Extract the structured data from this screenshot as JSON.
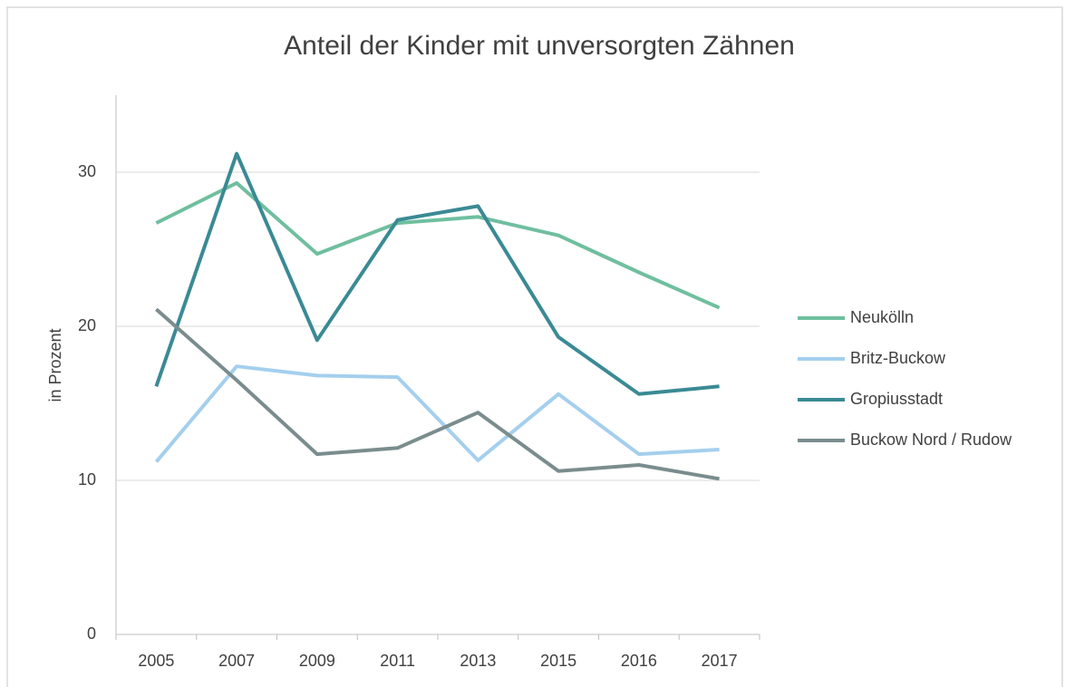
{
  "chart_data": {
    "type": "line",
    "title": "Anteil der Kinder mit unversorgten Zähnen",
    "y_label": "in Prozent",
    "categories": [
      "2005",
      "2007",
      "2009",
      "2011",
      "2013",
      "2015",
      "2016",
      "2017"
    ],
    "series": [
      {
        "name": "Neukölln",
        "color": "#6fbf9f",
        "values": [
          26.7,
          29.3,
          24.7,
          26.7,
          27.1,
          25.9,
          23.5,
          21.2
        ]
      },
      {
        "name": "Britz-Buckow",
        "color": "#a4cfee",
        "values": [
          11.2,
          17.4,
          16.8,
          16.7,
          11.3,
          15.6,
          11.7,
          12.0
        ]
      },
      {
        "name": "Gropiusstadt",
        "color": "#3a8a94",
        "values": [
          16.1,
          31.2,
          19.1,
          26.9,
          27.8,
          19.3,
          15.6,
          16.1
        ]
      },
      {
        "name": "Buckow Nord / Rudow",
        "color": "#7a8c8e",
        "values": [
          21.1,
          16.5,
          11.7,
          12.1,
          14.4,
          10.6,
          11.0,
          10.1
        ]
      }
    ],
    "ylim": [
      0,
      35
    ],
    "yticks": [
      0,
      10,
      20,
      30
    ],
    "grid": true,
    "legend": "right"
  }
}
